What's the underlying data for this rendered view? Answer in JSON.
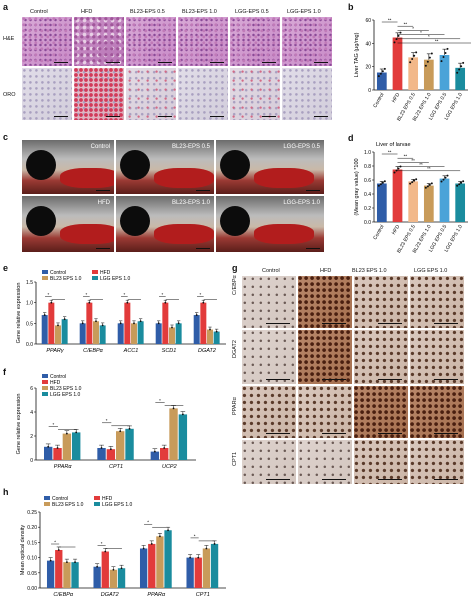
{
  "panels": {
    "a": "a",
    "b": "b",
    "c": "c",
    "d": "d",
    "e": "e",
    "f": "f",
    "g": "g",
    "h": "h"
  },
  "panel_a": {
    "columns": [
      "Control",
      "HFD",
      "BL23-EPS 0.5",
      "BL23-EPS 1.0",
      "LGG-EPS 0.5",
      "LGG-EPS 1.0"
    ],
    "rows": [
      "H&E",
      "ORO"
    ]
  },
  "panel_c": {
    "labels": [
      "Control",
      "BL23-EPS 0.5",
      "LGG-EPS 0.5",
      "HFD",
      "BL23-EPS 1.0",
      "LGG-EPS 1.0"
    ]
  },
  "panel_g": {
    "columns": [
      "Control",
      "HFD",
      "BL23 EPS 1.0",
      "LGG EPS 1.0"
    ],
    "rows": [
      "C/EBPα",
      "DGAT2",
      "PPARα",
      "CPT1"
    ]
  },
  "colors": {
    "control": "#2f5da8",
    "hfd": "#e23b3b",
    "bl23_05": "#f2b889",
    "bl23_10": "#c89b5a",
    "lgg_05": "#4aa3d8",
    "lgg_10": "#1a8c9e"
  },
  "chart_data": [
    {
      "id": "b",
      "type": "bar",
      "ylabel": "Liver TAG (μg/mg)",
      "ylim": [
        0,
        60
      ],
      "yticks": [
        0,
        20,
        40,
        60
      ],
      "categories": [
        "Control",
        "HFD",
        "BL23 EPS 0.5",
        "BL23 EPS 1.0",
        "LGG EPS 0.5",
        "LGG EPS 1.0"
      ],
      "values": [
        15,
        45,
        28,
        26,
        30,
        19
      ],
      "errors": [
        3,
        4,
        4,
        5,
        5,
        4
      ],
      "sig": [
        "**",
        "**",
        "*",
        "*",
        "*",
        "**"
      ]
    },
    {
      "id": "d",
      "type": "bar",
      "title": "Liver of larvae",
      "ylabel": "(Mean gray value) *100",
      "ylim": [
        0,
        1.0
      ],
      "yticks": [
        0.0,
        0.2,
        0.4,
        0.6,
        0.8,
        1.0
      ],
      "categories": [
        "Control",
        "HFD",
        "BL23 EPS 0.5",
        "BL23 EPS 1.0",
        "LGG EPS 0.5",
        "LGG EPS 1.0"
      ],
      "values": [
        0.55,
        0.75,
        0.58,
        0.52,
        0.62,
        0.55
      ],
      "errors": [
        0.03,
        0.04,
        0.03,
        0.03,
        0.04,
        0.03
      ],
      "sig": [
        "**",
        "**",
        "**",
        "**",
        "**"
      ]
    },
    {
      "id": "e",
      "type": "bar",
      "ylabel": "Gene relative expression",
      "ylim": [
        0,
        1.5
      ],
      "yticks": [
        0.0,
        0.5,
        1.0,
        1.5
      ],
      "categories": [
        "PPARγ",
        "C/EBPα",
        "ACC1",
        "SCD1",
        "DGAT2"
      ],
      "series": [
        {
          "name": "Control",
          "values": [
            0.7,
            0.5,
            0.5,
            0.5,
            0.7
          ]
        },
        {
          "name": "HFD",
          "values": [
            1.0,
            1.0,
            1.0,
            1.0,
            1.0
          ]
        },
        {
          "name": "BL23 EPS 1.0",
          "values": [
            0.45,
            0.55,
            0.5,
            0.4,
            0.35
          ]
        },
        {
          "name": "LGG EPS 1.0",
          "values": [
            0.6,
            0.45,
            0.55,
            0.5,
            0.3
          ]
        }
      ]
    },
    {
      "id": "f",
      "type": "bar",
      "ylabel": "Gene relative expression",
      "ylim": [
        0,
        6
      ],
      "yticks": [
        0,
        2,
        4,
        6
      ],
      "categories": [
        "PPARα",
        "CPT1",
        "UCP2"
      ],
      "series": [
        {
          "name": "Control",
          "values": [
            1.1,
            1.0,
            0.7
          ]
        },
        {
          "name": "HFD",
          "values": [
            1.0,
            0.9,
            1.0
          ]
        },
        {
          "name": "BL23 EPS 1.0",
          "values": [
            2.2,
            2.4,
            4.3
          ]
        },
        {
          "name": "LGG EPS 1.0",
          "values": [
            2.3,
            2.6,
            3.8
          ]
        }
      ]
    },
    {
      "id": "h",
      "type": "bar",
      "ylabel": "Mean optical density",
      "ylim": [
        0,
        0.25
      ],
      "yticks": [
        0.0,
        0.05,
        0.1,
        0.15,
        0.2,
        0.25
      ],
      "categories": [
        "C/EBPα",
        "DGAT2",
        "PPARα",
        "CPT1"
      ],
      "series": [
        {
          "name": "Control",
          "values": [
            0.09,
            0.07,
            0.13,
            0.1
          ]
        },
        {
          "name": "HFD",
          "values": [
            0.125,
            0.12,
            0.145,
            0.1
          ]
        },
        {
          "name": "BL23 EPS 1.0",
          "values": [
            0.085,
            0.06,
            0.17,
            0.13
          ]
        },
        {
          "name": "LGG EPS 1.0",
          "values": [
            0.085,
            0.065,
            0.19,
            0.145
          ]
        }
      ]
    }
  ]
}
